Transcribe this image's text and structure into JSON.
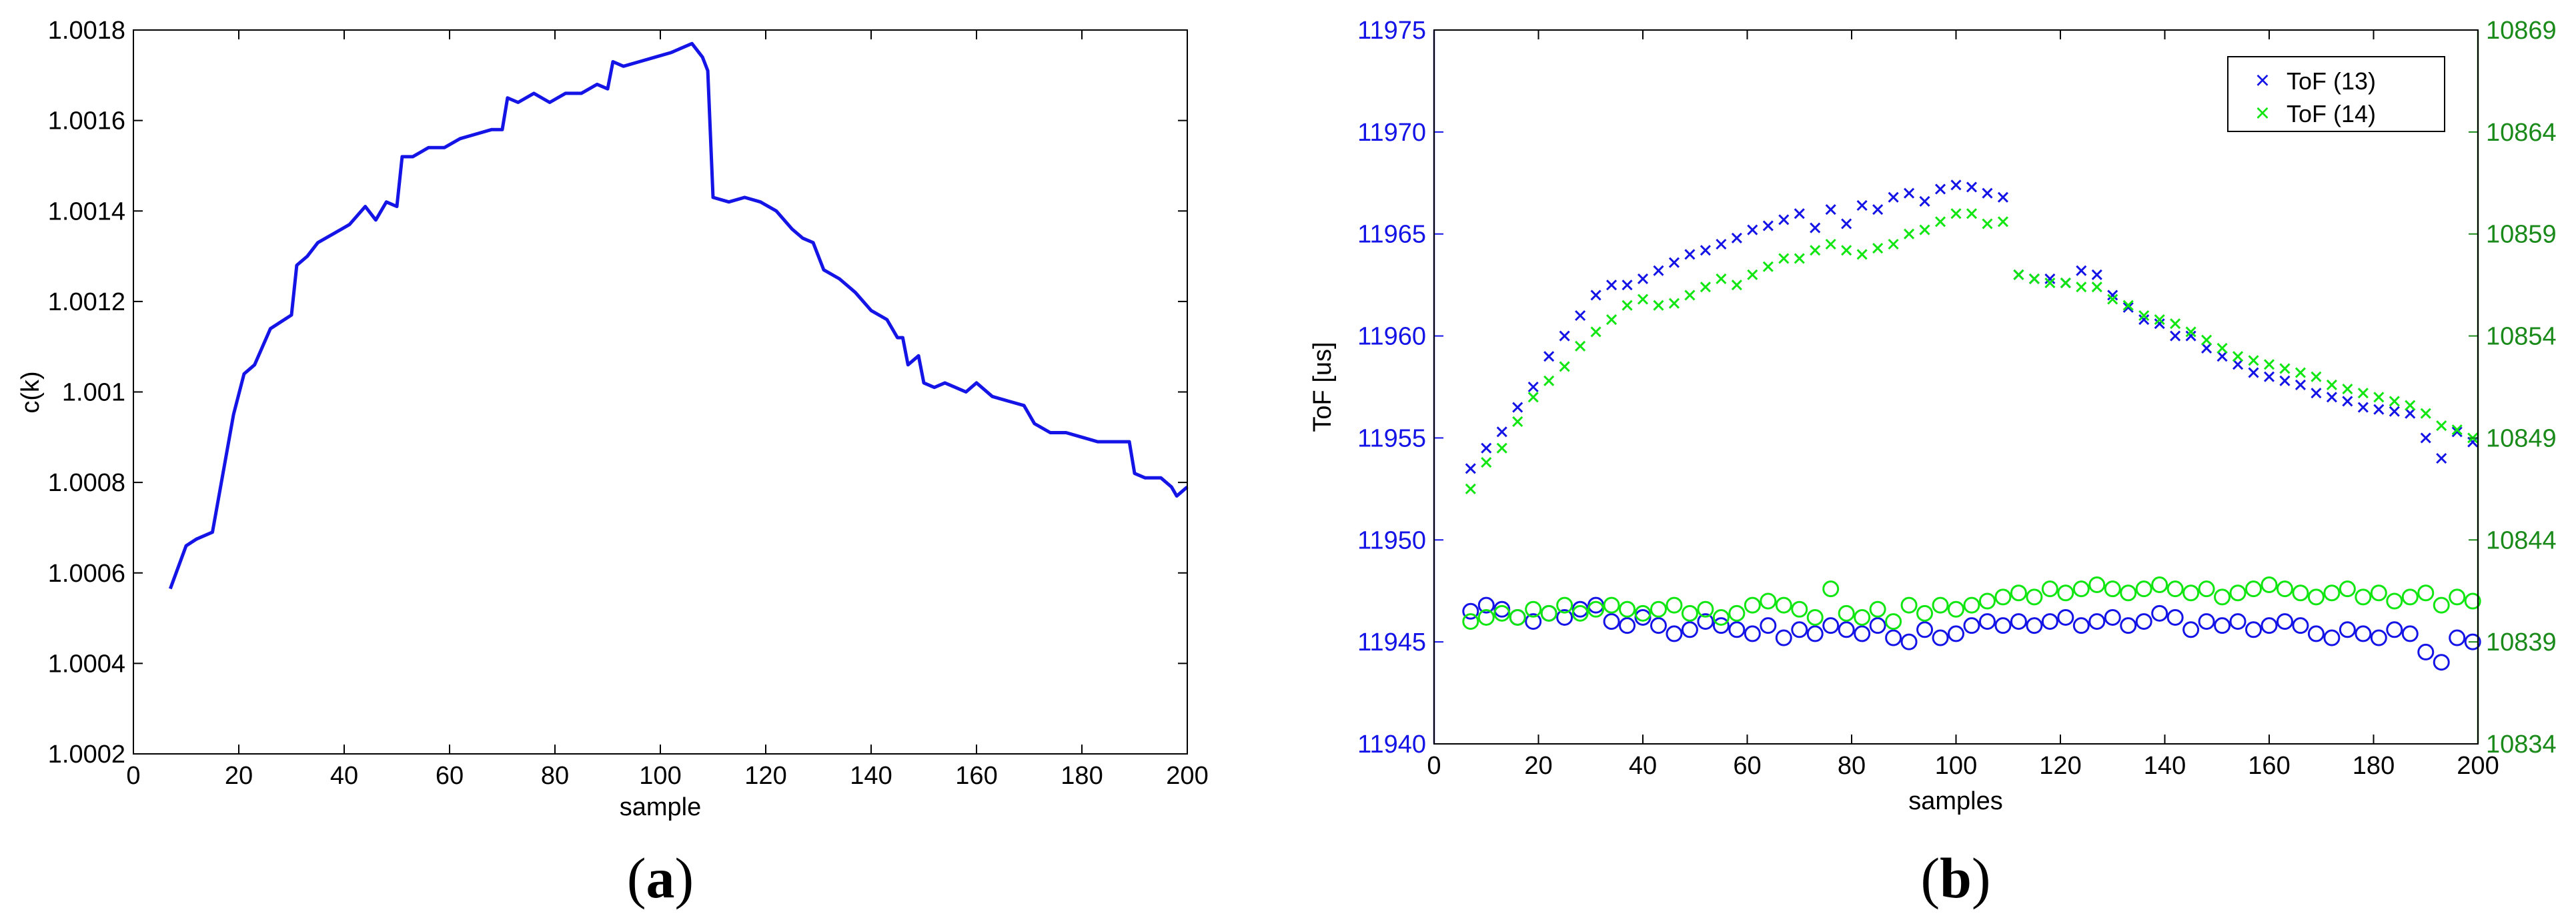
{
  "colors": {
    "blue": "#1414e6",
    "green": "#12e612",
    "green_axis": "#1a8a1a",
    "axis": "#000000"
  },
  "panels": [
    {
      "open": "(",
      "letter": "a",
      "close": ")"
    },
    {
      "open": "(",
      "letter": "b",
      "close": ")"
    }
  ],
  "chart_data": [
    {
      "type": "line",
      "xlabel": "sample",
      "ylabel": "c(k)",
      "xlim": [
        0,
        200
      ],
      "ylim": [
        1.0002,
        1.0018
      ],
      "xticks": [
        0,
        20,
        40,
        60,
        80,
        100,
        120,
        140,
        160,
        180,
        200
      ],
      "yticks": [
        "1.0002",
        "1.0004",
        "1.0006",
        "1.0008",
        "1.001",
        "1.0012",
        "1.0014",
        "1.0016",
        "1.0018"
      ],
      "grid": false,
      "series": [
        {
          "color": "#1414e6",
          "x": [
            7,
            10,
            12,
            15,
            17,
            19,
            21,
            23,
            26,
            28,
            30,
            31,
            33,
            35,
            38,
            41,
            44,
            46,
            48,
            50,
            51,
            53,
            56,
            59,
            62,
            65,
            68,
            70,
            71,
            73,
            76,
            79,
            82,
            85,
            88,
            90,
            91,
            93,
            96,
            99,
            102,
            104,
            106,
            108,
            109,
            110,
            113,
            116,
            119,
            122,
            125,
            127,
            129,
            131,
            134,
            137,
            140,
            143,
            145,
            146,
            147,
            149,
            150,
            152,
            154,
            156,
            158,
            160,
            163,
            166,
            169,
            171,
            174,
            177,
            180,
            183,
            186,
            188,
            189,
            190,
            192,
            195,
            197,
            198,
            199,
            200
          ],
          "y": [
            1.000565,
            1.00066,
            1.000675,
            1.00069,
            1.00082,
            1.00095,
            1.00104,
            1.00106,
            1.00114,
            1.001155,
            1.00117,
            1.00128,
            1.0013,
            1.00133,
            1.00135,
            1.00137,
            1.00141,
            1.00138,
            1.00142,
            1.00141,
            1.00152,
            1.00152,
            1.00154,
            1.00154,
            1.00156,
            1.00157,
            1.00158,
            1.00158,
            1.00165,
            1.00164,
            1.00166,
            1.00164,
            1.00166,
            1.00166,
            1.00168,
            1.00167,
            1.00173,
            1.00172,
            1.00173,
            1.00174,
            1.00175,
            1.00176,
            1.00177,
            1.00174,
            1.00171,
            1.00143,
            1.00142,
            1.00143,
            1.00142,
            1.0014,
            1.00136,
            1.00134,
            1.00133,
            1.00127,
            1.00125,
            1.00122,
            1.00118,
            1.00116,
            1.00112,
            1.00112,
            1.00106,
            1.00108,
            1.00102,
            1.00101,
            1.00102,
            1.00101,
            1.001,
            1.00102,
            1.00099,
            1.00098,
            1.00097,
            1.00093,
            1.00091,
            1.00091,
            1.0009,
            1.00089,
            1.00089,
            1.00089,
            1.00089,
            1.00082,
            1.00081,
            1.00081,
            1.00079,
            1.00077,
            1.00078,
            1.00079
          ]
        }
      ]
    },
    {
      "type": "scatter",
      "xlabel": "samples",
      "ylabel": "ToF [us]",
      "xlim": [
        0,
        200
      ],
      "ylim": [
        11940,
        11975
      ],
      "y2lim": [
        10834,
        10869
      ],
      "xticks": [
        0,
        20,
        40,
        60,
        80,
        100,
        120,
        140,
        160,
        180,
        200
      ],
      "yticks": [
        11940,
        11945,
        11950,
        11955,
        11960,
        11965,
        11970,
        11975
      ],
      "y2ticks": [
        10834,
        10839,
        10844,
        10849,
        10854,
        10859,
        10864,
        10869
      ],
      "grid": false,
      "legend_position": "top-right",
      "legend": [
        {
          "label": "ToF (13)",
          "marker": "x",
          "color": "#1414e6"
        },
        {
          "label": "ToF (14)",
          "marker": "x",
          "color": "#12e612"
        }
      ],
      "series": [
        {
          "name": "ToF (13)",
          "marker": "x",
          "color": "#1414e6",
          "axis": "left",
          "x": [
            7,
            10,
            13,
            16,
            19,
            22,
            25,
            28,
            31,
            34,
            37,
            40,
            43,
            46,
            49,
            52,
            55,
            58,
            61,
            64,
            67,
            70,
            73,
            76,
            79,
            82,
            85,
            88,
            91,
            94,
            97,
            100,
            103,
            106,
            109,
            112,
            115,
            118,
            121,
            124,
            127,
            130,
            133,
            136,
            139,
            142,
            145,
            148,
            151,
            154,
            157,
            160,
            163,
            166,
            169,
            172,
            175,
            178,
            181,
            184,
            187,
            190,
            193,
            196,
            199
          ],
          "y": [
            11953.5,
            11954.5,
            11955.3,
            11956.5,
            11957.5,
            11959,
            11960,
            11961,
            11962,
            11962.5,
            11962.5,
            11962.8,
            11963.2,
            11963.6,
            11964,
            11964.2,
            11964.5,
            11964.8,
            11965.2,
            11965.4,
            11965.7,
            11966,
            11965.3,
            11966.2,
            11965.5,
            11966.4,
            11966.2,
            11966.8,
            11967,
            11966.6,
            11967.2,
            11967.4,
            11967.3,
            11967,
            11966.8,
            11963,
            11962.8,
            11962.8,
            11962.6,
            11963.2,
            11963,
            11962,
            11961.4,
            11960.8,
            11960.6,
            11960,
            11960,
            11959.4,
            11959,
            11958.6,
            11958.2,
            11958,
            11957.8,
            11957.6,
            11957.2,
            11957,
            11956.8,
            11956.5,
            11956.4,
            11956.3,
            11956.2,
            11955,
            11954,
            11955.3,
            11954.8
          ]
        },
        {
          "name": "ToF (14)",
          "marker": "x",
          "color": "#12e612",
          "axis": "left",
          "x": [
            7,
            10,
            13,
            16,
            19,
            22,
            25,
            28,
            31,
            34,
            37,
            40,
            43,
            46,
            49,
            52,
            55,
            58,
            61,
            64,
            67,
            70,
            73,
            76,
            79,
            82,
            85,
            88,
            91,
            94,
            97,
            100,
            103,
            106,
            109,
            112,
            115,
            118,
            121,
            124,
            127,
            130,
            133,
            136,
            139,
            142,
            145,
            148,
            151,
            154,
            157,
            160,
            163,
            166,
            169,
            172,
            175,
            178,
            181,
            184,
            187,
            190,
            193,
            196,
            199
          ],
          "y": [
            11952.5,
            11953.8,
            11954.5,
            11955.8,
            11957,
            11957.8,
            11958.5,
            11959.5,
            11960.2,
            11960.8,
            11961.5,
            11961.8,
            11961.5,
            11961.6,
            11962,
            11962.4,
            11962.8,
            11962.5,
            11963,
            11963.4,
            11963.8,
            11963.8,
            11964.2,
            11964.5,
            11964.2,
            11964,
            11964.3,
            11964.5,
            11965,
            11965.2,
            11965.6,
            11966,
            11966,
            11965.5,
            11965.6,
            11963,
            11962.8,
            11962.6,
            11962.6,
            11962.4,
            11962.4,
            11961.8,
            11961.5,
            11961,
            11960.8,
            11960.6,
            11960.2,
            11959.8,
            11959.4,
            11959,
            11958.8,
            11958.6,
            11958.4,
            11958.2,
            11958,
            11957.6,
            11957.4,
            11957.2,
            11957,
            11956.8,
            11956.6,
            11956.2,
            11955.6,
            11955.4,
            11955
          ]
        },
        {
          "name": "",
          "marker": "o",
          "color": "#1414e6",
          "axis": "left",
          "x": [
            7,
            10,
            13,
            16,
            19,
            22,
            25,
            28,
            31,
            34,
            37,
            40,
            43,
            46,
            49,
            52,
            55,
            58,
            61,
            64,
            67,
            70,
            73,
            76,
            79,
            82,
            85,
            88,
            91,
            94,
            97,
            100,
            103,
            106,
            109,
            112,
            115,
            118,
            121,
            124,
            127,
            130,
            133,
            136,
            139,
            142,
            145,
            148,
            151,
            154,
            157,
            160,
            163,
            166,
            169,
            172,
            175,
            178,
            181,
            184,
            187,
            190,
            193,
            196,
            199
          ],
          "y": [
            11946.5,
            11946.8,
            11946.6,
            11946.2,
            11946,
            11946.4,
            11946.2,
            11946.6,
            11946.8,
            11946,
            11945.8,
            11946.2,
            11945.8,
            11945.4,
            11945.6,
            11946,
            11945.8,
            11945.6,
            11945.4,
            11945.8,
            11945.2,
            11945.6,
            11945.4,
            11945.8,
            11945.6,
            11945.4,
            11945.8,
            11945.2,
            11945,
            11945.6,
            11945.2,
            11945.4,
            11945.8,
            11946,
            11945.8,
            11946,
            11945.8,
            11946,
            11946.2,
            11945.8,
            11946,
            11946.2,
            11945.8,
            11946,
            11946.4,
            11946.2,
            11945.6,
            11946,
            11945.8,
            11946,
            11945.6,
            11945.8,
            11946,
            11945.8,
            11945.4,
            11945.2,
            11945.6,
            11945.4,
            11945.2,
            11945.6,
            11945.4,
            11944.5,
            11944,
            11945.2,
            11945
          ]
        },
        {
          "name": "",
          "marker": "o",
          "color": "#12e612",
          "axis": "left",
          "x": [
            7,
            10,
            13,
            16,
            19,
            22,
            25,
            28,
            31,
            34,
            37,
            40,
            43,
            46,
            49,
            52,
            55,
            58,
            61,
            64,
            67,
            70,
            73,
            76,
            79,
            82,
            85,
            88,
            91,
            94,
            97,
            100,
            103,
            106,
            109,
            112,
            115,
            118,
            121,
            124,
            127,
            130,
            133,
            136,
            139,
            142,
            145,
            148,
            151,
            154,
            157,
            160,
            163,
            166,
            169,
            172,
            175,
            178,
            181,
            184,
            187,
            190,
            193,
            196,
            199
          ],
          "y": [
            11946,
            11946.2,
            11946.4,
            11946.2,
            11946.6,
            11946.4,
            11946.8,
            11946.4,
            11946.6,
            11946.8,
            11946.6,
            11946.4,
            11946.6,
            11946.8,
            11946.4,
            11946.6,
            11946.2,
            11946.4,
            11946.8,
            11947,
            11946.8,
            11946.6,
            11946.2,
            11947.6,
            11946.4,
            11946.2,
            11946.6,
            11946,
            11946.8,
            11946.4,
            11946.8,
            11946.6,
            11946.8,
            11947,
            11947.2,
            11947.4,
            11947.2,
            11947.6,
            11947.4,
            11947.6,
            11947.8,
            11947.6,
            11947.4,
            11947.6,
            11947.8,
            11947.6,
            11947.4,
            11947.6,
            11947.2,
            11947.4,
            11947.6,
            11947.8,
            11947.6,
            11947.4,
            11947.2,
            11947.4,
            11947.6,
            11947.2,
            11947.4,
            11947,
            11947.2,
            11947.4,
            11946.8,
            11947.2,
            11947
          ]
        }
      ]
    }
  ]
}
